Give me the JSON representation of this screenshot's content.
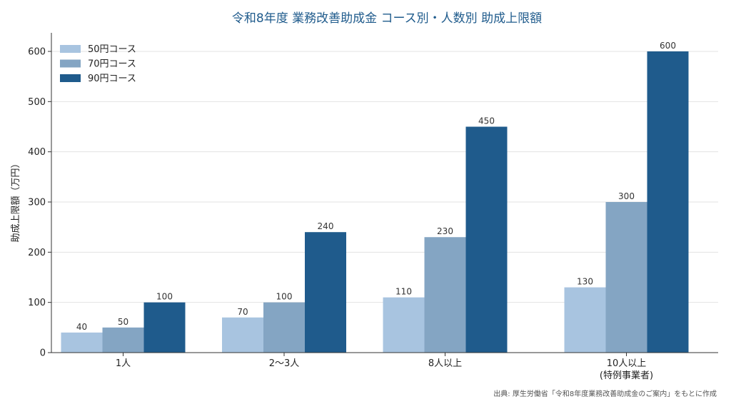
{
  "chart_data": {
    "type": "bar",
    "title": "令和8年度 業務改善助成金 コース別・人数別 助成上限額",
    "ylabel": "助成上限額（万円）",
    "xlabel": "",
    "categories": [
      [
        "1人"
      ],
      [
        "2〜3人"
      ],
      [
        "8人以上"
      ],
      [
        "10人以上",
        "(特例事業者)"
      ]
    ],
    "series": [
      {
        "name": "50円コース",
        "values": [
          40,
          70,
          110,
          130
        ],
        "color": "#a8c4e0"
      },
      {
        "name": "70円コース",
        "values": [
          50,
          100,
          230,
          300
        ],
        "color": "#84a5c3"
      },
      {
        "name": "90円コース",
        "values": [
          100,
          240,
          450,
          600
        ],
        "color": "#1f5b8c"
      }
    ],
    "ylim": [
      0,
      600
    ],
    "yticks": [
      0,
      100,
      200,
      300,
      400,
      500,
      600
    ],
    "grid": "horizontal",
    "legend_position": "top-left",
    "source": "出典: 厚生労働省「令和8年度業務改善助成金のご案内」をもとに作成"
  }
}
